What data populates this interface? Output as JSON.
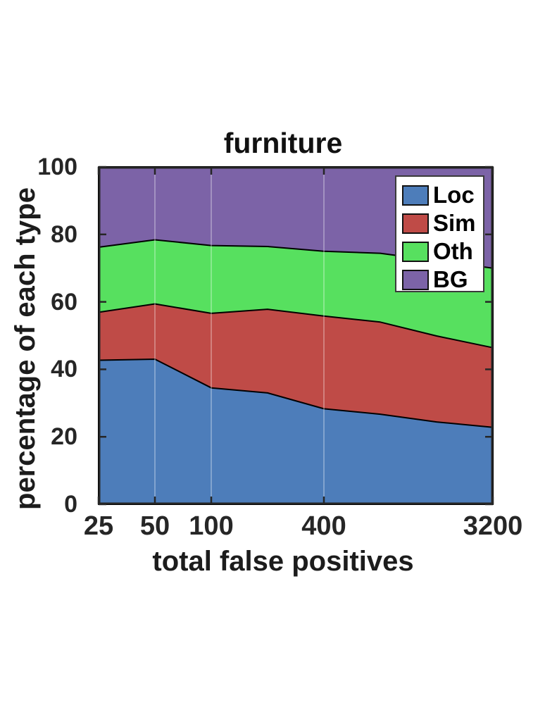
{
  "figure": {
    "title": "furniture",
    "xlabel": "total false positives",
    "ylabel": "percentage of each type"
  },
  "colors": {
    "loc": "#4D7DBA",
    "sim": "#BF4B47",
    "oth": "#57E05F",
    "bg": "#7C63A7",
    "area_edge": "#000000",
    "axis": "#262626",
    "grid": "rgba(255,255,255,0.30)",
    "legend_border": "#3a3a3a",
    "background": "#FFFFFF",
    "text": "#1c1c1c"
  },
  "legend": {
    "position": "northeast",
    "items": [
      {
        "label": "Loc",
        "color": "loc"
      },
      {
        "label": "Sim",
        "color": "sim"
      },
      {
        "label": "Oth",
        "color": "oth"
      },
      {
        "label": "BG",
        "color": "bg"
      }
    ]
  },
  "chart_data": {
    "type": "area",
    "stacked": true,
    "title": "furniture",
    "xlabel": "total false positives",
    "ylabel": "percentage of each type",
    "x": [
      25,
      50,
      100,
      200,
      400,
      800,
      1600,
      3200
    ],
    "x_scale": "log2",
    "xlim": [
      25,
      3200
    ],
    "ylim": [
      0,
      100
    ],
    "series": [
      {
        "name": "Loc",
        "color": "loc",
        "values": [
          42.7,
          43.0,
          34.5,
          33.0,
          28.3,
          26.7,
          24.4,
          22.8
        ]
      },
      {
        "name": "Sim",
        "color": "sim",
        "values": [
          14.2,
          16.4,
          22.1,
          24.8,
          27.5,
          27.3,
          25.5,
          23.6
        ]
      },
      {
        "name": "Oth",
        "color": "oth",
        "values": [
          19.3,
          19.0,
          20.1,
          18.6,
          19.2,
          20.4,
          22.3,
          23.6
        ]
      },
      {
        "name": "BG",
        "color": "bg",
        "values": [
          23.8,
          21.6,
          23.3,
          23.6,
          25.0,
          25.6,
          27.8,
          30.0
        ]
      }
    ],
    "x_ticks": [
      25,
      50,
      100,
      400,
      3200
    ],
    "x_tick_labels": [
      "25",
      "50",
      "100",
      "400",
      "3200"
    ],
    "y_ticks": [
      0,
      20,
      40,
      60,
      80,
      100
    ],
    "y_tick_labels": [
      "0",
      "20",
      "40",
      "60",
      "80",
      "100"
    ],
    "x_gridlines": [
      50,
      100,
      400
    ],
    "grid": "vertical-only",
    "legend_position": "northeast"
  }
}
